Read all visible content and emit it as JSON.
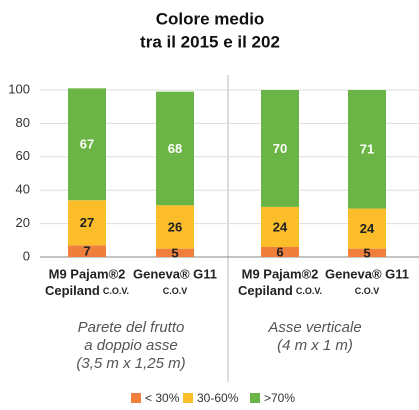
{
  "chart_data": {
    "type": "stacked-bar",
    "title": [
      "Colore medio",
      "tra il 2015 e il 202"
    ],
    "categories": [
      [
        "M9 Pajam®2",
        "Cepiland",
        "C.O.V."
      ],
      [
        "Geneva® G11",
        "C.O.V"
      ],
      [
        "M9 Pajam®2",
        "Cepiland",
        "C.O.V."
      ],
      [
        "Geneva® G11",
        "C.O.V"
      ]
    ],
    "groups": [
      [
        "Parete del frutto",
        "a doppio asse",
        "(3,5 m x 1,25 m)"
      ],
      [
        "Asse verticale",
        "(4 m x 1 m)"
      ]
    ],
    "series": [
      {
        "name": "< 30%",
        "color": "#f07f3c",
        "values": [
          7,
          5,
          6,
          5
        ]
      },
      {
        "name": "30-60%",
        "color": "#fbbd2a",
        "values": [
          27,
          26,
          24,
          24
        ]
      },
      {
        "name": ">70%",
        "color": "#6ab545",
        "values": [
          67,
          68,
          70,
          71
        ]
      }
    ],
    "ylim": [
      0,
      100
    ],
    "yticks": [
      0,
      20,
      40,
      60,
      80,
      100
    ],
    "grid": true,
    "legend": "bottom"
  }
}
